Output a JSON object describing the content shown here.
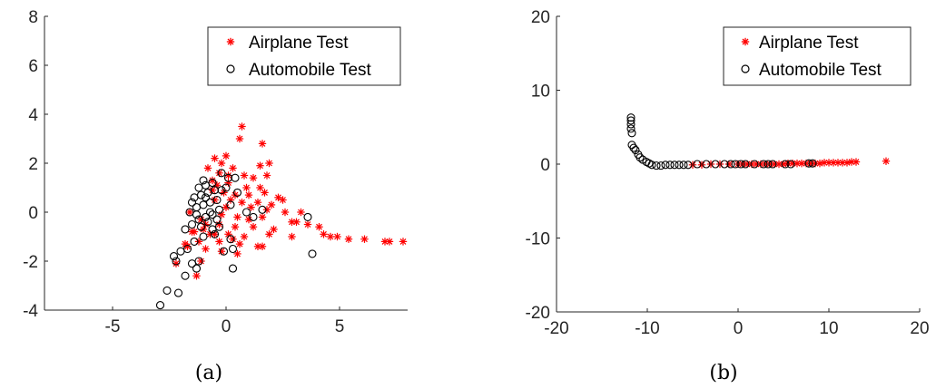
{
  "chart_data": [
    {
      "type": "scatter",
      "caption": "(a)",
      "xlim": [
        -8,
        8
      ],
      "ylim": [
        -4,
        8
      ],
      "xticks": [
        -5,
        0,
        5
      ],
      "yticks": [
        -4,
        -2,
        0,
        2,
        4,
        6,
        8
      ],
      "grid": false,
      "legend_position": "top-right",
      "series": [
        {
          "name": "Airplane Test",
          "marker": "asterisk",
          "color": "#ff0000",
          "points": [
            [
              0.7,
              3.5
            ],
            [
              0.6,
              3.0
            ],
            [
              1.6,
              2.8
            ],
            [
              0.0,
              2.3
            ],
            [
              -0.5,
              2.2
            ],
            [
              -0.2,
              2.0
            ],
            [
              0.3,
              1.8
            ],
            [
              1.5,
              1.9
            ],
            [
              1.9,
              2.0
            ],
            [
              -0.8,
              1.8
            ],
            [
              -0.3,
              1.6
            ],
            [
              0.8,
              1.5
            ],
            [
              1.2,
              1.4
            ],
            [
              1.8,
              1.5
            ],
            [
              -0.6,
              1.3
            ],
            [
              0.1,
              1.2
            ],
            [
              0.9,
              1.0
            ],
            [
              1.5,
              1.0
            ],
            [
              -0.1,
              0.8
            ],
            [
              0.4,
              0.7
            ],
            [
              1.0,
              0.7
            ],
            [
              1.7,
              0.8
            ],
            [
              2.3,
              0.6
            ],
            [
              -0.5,
              0.5
            ],
            [
              0.2,
              0.5
            ],
            [
              0.7,
              0.4
            ],
            [
              1.4,
              0.4
            ],
            [
              2.0,
              0.3
            ],
            [
              2.5,
              0.5
            ],
            [
              0.0,
              0.2
            ],
            [
              1.1,
              0.2
            ],
            [
              1.8,
              0.1
            ],
            [
              2.6,
              0.0
            ],
            [
              3.3,
              0.0
            ],
            [
              -0.2,
              -0.1
            ],
            [
              0.5,
              -0.2
            ],
            [
              1.0,
              -0.3
            ],
            [
              1.6,
              -0.2
            ],
            [
              2.9,
              -0.4
            ],
            [
              3.1,
              -0.4
            ],
            [
              3.6,
              -0.5
            ],
            [
              -0.9,
              -0.5
            ],
            [
              -0.3,
              -0.5
            ],
            [
              0.4,
              -0.6
            ],
            [
              1.2,
              -0.6
            ],
            [
              2.1,
              -0.7
            ],
            [
              4.1,
              -0.6
            ],
            [
              -1.5,
              -0.8
            ],
            [
              -0.7,
              -0.9
            ],
            [
              0.1,
              -0.9
            ],
            [
              0.8,
              -1.0
            ],
            [
              1.9,
              -0.9
            ],
            [
              4.3,
              -0.9
            ],
            [
              4.6,
              -1.0
            ],
            [
              4.9,
              -1.0
            ],
            [
              -1.2,
              -1.2
            ],
            [
              -0.3,
              -1.2
            ],
            [
              0.6,
              -1.3
            ],
            [
              1.4,
              -1.4
            ],
            [
              1.6,
              -1.4
            ],
            [
              2.9,
              -1.0
            ],
            [
              5.4,
              -1.1
            ],
            [
              6.1,
              -1.1
            ],
            [
              -1.7,
              -1.4
            ],
            [
              -0.9,
              -1.5
            ],
            [
              -0.2,
              -1.6
            ],
            [
              0.5,
              -1.7
            ],
            [
              7.0,
              -1.2
            ],
            [
              7.2,
              -1.2
            ],
            [
              7.8,
              -1.2
            ],
            [
              -1.1,
              -2.0
            ],
            [
              -1.3,
              -2.6
            ],
            [
              -2.2,
              -2.1
            ],
            [
              -1.8,
              -1.3
            ],
            [
              -1.4,
              -0.8
            ],
            [
              -1.1,
              -0.3
            ],
            [
              -1.6,
              0.0
            ],
            [
              -0.6,
              0.9
            ],
            [
              -0.4,
              1.1
            ],
            [
              0.1,
              1.5
            ],
            [
              -1.0,
              -0.7
            ],
            [
              -0.5,
              -0.9
            ],
            [
              0.3,
              -1.1
            ]
          ]
        },
        {
          "name": "Automobile Test",
          "marker": "circle",
          "color": "#000000",
          "points": [
            [
              -2.9,
              -3.8
            ],
            [
              -2.6,
              -3.2
            ],
            [
              -2.1,
              -3.3
            ],
            [
              -2.2,
              -2.0
            ],
            [
              -1.8,
              -2.6
            ],
            [
              -1.5,
              -2.1
            ],
            [
              -1.3,
              -2.3
            ],
            [
              -1.2,
              -2.0
            ],
            [
              -2.3,
              -1.8
            ],
            [
              -2.0,
              -1.6
            ],
            [
              -1.7,
              -1.5
            ],
            [
              -1.4,
              -1.2
            ],
            [
              -1.0,
              -1.0
            ],
            [
              -0.5,
              -0.9
            ],
            [
              -1.8,
              -0.7
            ],
            [
              -1.5,
              -0.5
            ],
            [
              -1.2,
              -0.3
            ],
            [
              -0.9,
              -0.2
            ],
            [
              -0.6,
              -0.1
            ],
            [
              -1.6,
              0.0
            ],
            [
              -1.3,
              0.2
            ],
            [
              -1.0,
              0.3
            ],
            [
              -0.7,
              0.4
            ],
            [
              -0.4,
              0.5
            ],
            [
              -1.4,
              0.6
            ],
            [
              -1.1,
              0.7
            ],
            [
              -0.8,
              0.8
            ],
            [
              -0.5,
              0.9
            ],
            [
              -1.2,
              1.0
            ],
            [
              -0.9,
              1.1
            ],
            [
              -0.6,
              1.2
            ],
            [
              -1.0,
              1.3
            ],
            [
              -0.7,
              0.0
            ],
            [
              -0.3,
              0.1
            ],
            [
              -1.1,
              -0.6
            ],
            [
              -0.8,
              -0.4
            ],
            [
              -0.4,
              -0.3
            ],
            [
              -0.2,
              0.9
            ],
            [
              0.0,
              1.0
            ],
            [
              0.1,
              1.4
            ],
            [
              -0.2,
              1.6
            ],
            [
              0.4,
              1.4
            ],
            [
              0.5,
              0.8
            ],
            [
              0.2,
              0.3
            ],
            [
              -0.3,
              -0.6
            ],
            [
              0.2,
              -1.1
            ],
            [
              0.3,
              -1.5
            ],
            [
              -0.1,
              -1.6
            ],
            [
              0.3,
              -2.3
            ],
            [
              0.9,
              0.0
            ],
            [
              1.2,
              -0.2
            ],
            [
              1.6,
              0.1
            ],
            [
              3.6,
              -0.2
            ],
            [
              3.8,
              -1.7
            ],
            [
              -1.5,
              0.4
            ],
            [
              -0.9,
              0.6
            ],
            [
              -1.3,
              -0.1
            ],
            [
              -0.6,
              -0.7
            ]
          ]
        }
      ]
    },
    {
      "type": "scatter",
      "caption": "(b)",
      "xlim": [
        -20,
        20
      ],
      "ylim": [
        -20,
        20
      ],
      "xticks": [
        -20,
        -10,
        0,
        10,
        20
      ],
      "yticks": [
        -20,
        -10,
        0,
        10,
        20
      ],
      "grid": false,
      "legend_position": "top-right",
      "series": [
        {
          "name": "Airplane Test",
          "marker": "asterisk",
          "color": "#ff0000",
          "points": [
            [
              -5.0,
              -0.1
            ],
            [
              -4.0,
              -0.1
            ],
            [
              -3.0,
              0.0
            ],
            [
              -2.0,
              0.0
            ],
            [
              -1.0,
              0.0
            ],
            [
              0.0,
              0.0
            ],
            [
              0.5,
              0.0
            ],
            [
              1.0,
              0.0
            ],
            [
              1.5,
              0.0
            ],
            [
              2.0,
              0.0
            ],
            [
              2.5,
              0.0
            ],
            [
              3.0,
              0.0
            ],
            [
              3.5,
              0.0
            ],
            [
              4.0,
              0.0
            ],
            [
              4.5,
              0.0
            ],
            [
              5.0,
              0.0
            ],
            [
              5.5,
              0.1
            ],
            [
              6.0,
              0.1
            ],
            [
              6.5,
              0.1
            ],
            [
              7.0,
              0.1
            ],
            [
              7.5,
              0.1
            ],
            [
              8.0,
              0.1
            ],
            [
              8.5,
              0.1
            ],
            [
              9.0,
              0.1
            ],
            [
              9.5,
              0.2
            ],
            [
              10.0,
              0.2
            ],
            [
              10.5,
              0.2
            ],
            [
              11.0,
              0.2
            ],
            [
              11.5,
              0.2
            ],
            [
              12.0,
              0.2
            ],
            [
              12.5,
              0.3
            ],
            [
              13.0,
              0.3
            ],
            [
              16.3,
              0.4
            ]
          ]
        },
        {
          "name": "Automobile Test",
          "marker": "circle",
          "color": "#000000",
          "points": [
            [
              -11.8,
              6.3
            ],
            [
              -11.8,
              5.9
            ],
            [
              -11.8,
              5.4
            ],
            [
              -11.8,
              4.8
            ],
            [
              -11.7,
              4.2
            ],
            [
              -11.7,
              2.6
            ],
            [
              -11.5,
              2.2
            ],
            [
              -11.3,
              1.9
            ],
            [
              -11.0,
              1.3
            ],
            [
              -10.8,
              0.9
            ],
            [
              -10.5,
              0.6
            ],
            [
              -10.1,
              0.3
            ],
            [
              -9.8,
              0.1
            ],
            [
              -9.5,
              -0.1
            ],
            [
              -9.0,
              -0.2
            ],
            [
              -8.5,
              -0.2
            ],
            [
              -8.0,
              -0.1
            ],
            [
              -7.5,
              -0.1
            ],
            [
              -7.0,
              -0.1
            ],
            [
              -6.5,
              -0.1
            ],
            [
              -6.0,
              -0.1
            ],
            [
              -5.5,
              -0.1
            ],
            [
              -4.5,
              0.0
            ],
            [
              -3.5,
              0.0
            ],
            [
              -2.5,
              0.0
            ],
            [
              -1.5,
              0.0
            ],
            [
              -0.8,
              0.0
            ],
            [
              -0.3,
              0.0
            ],
            [
              0.3,
              0.0
            ],
            [
              0.8,
              0.0
            ],
            [
              1.8,
              0.0
            ],
            [
              2.8,
              0.0
            ],
            [
              3.3,
              0.0
            ],
            [
              3.8,
              0.0
            ],
            [
              5.2,
              0.0
            ],
            [
              5.8,
              0.0
            ],
            [
              7.8,
              0.1
            ],
            [
              8.2,
              0.1
            ]
          ]
        }
      ]
    }
  ]
}
